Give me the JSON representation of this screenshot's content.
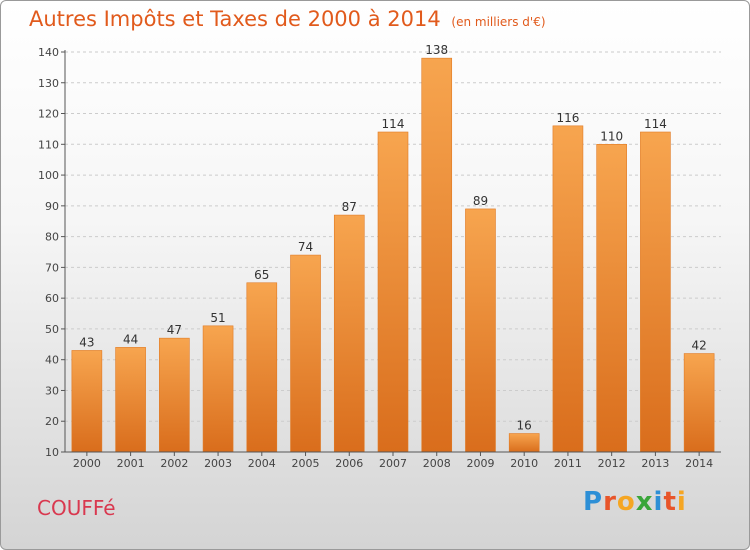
{
  "chart_data": {
    "type": "bar",
    "title": "Autres Impôts et Taxes de 2000 à 2014",
    "subtitle": "(en milliers d'€)",
    "categories": [
      "2000",
      "2001",
      "2002",
      "2003",
      "2004",
      "2005",
      "2006",
      "2007",
      "2008",
      "2009",
      "2010",
      "2011",
      "2012",
      "2013",
      "2014"
    ],
    "values": [
      43,
      44,
      47,
      51,
      65,
      74,
      87,
      114,
      138,
      89,
      16,
      116,
      110,
      114,
      42
    ],
    "ylim": [
      10,
      140
    ],
    "yticks": [
      10,
      20,
      30,
      40,
      50,
      60,
      70,
      80,
      90,
      100,
      110,
      120,
      130,
      140
    ],
    "grid": "horizontal-dashed",
    "bar_color": "#f2903e"
  },
  "place_name": "COUFFé",
  "logo": {
    "letters": [
      "P",
      "r",
      "o",
      "x",
      "i",
      "t",
      "i"
    ],
    "colors": [
      "#2d8fd6",
      "#e8552a",
      "#f5a623",
      "#3aa63a",
      "#2d8fd6",
      "#e8552a",
      "#f5a623"
    ]
  }
}
